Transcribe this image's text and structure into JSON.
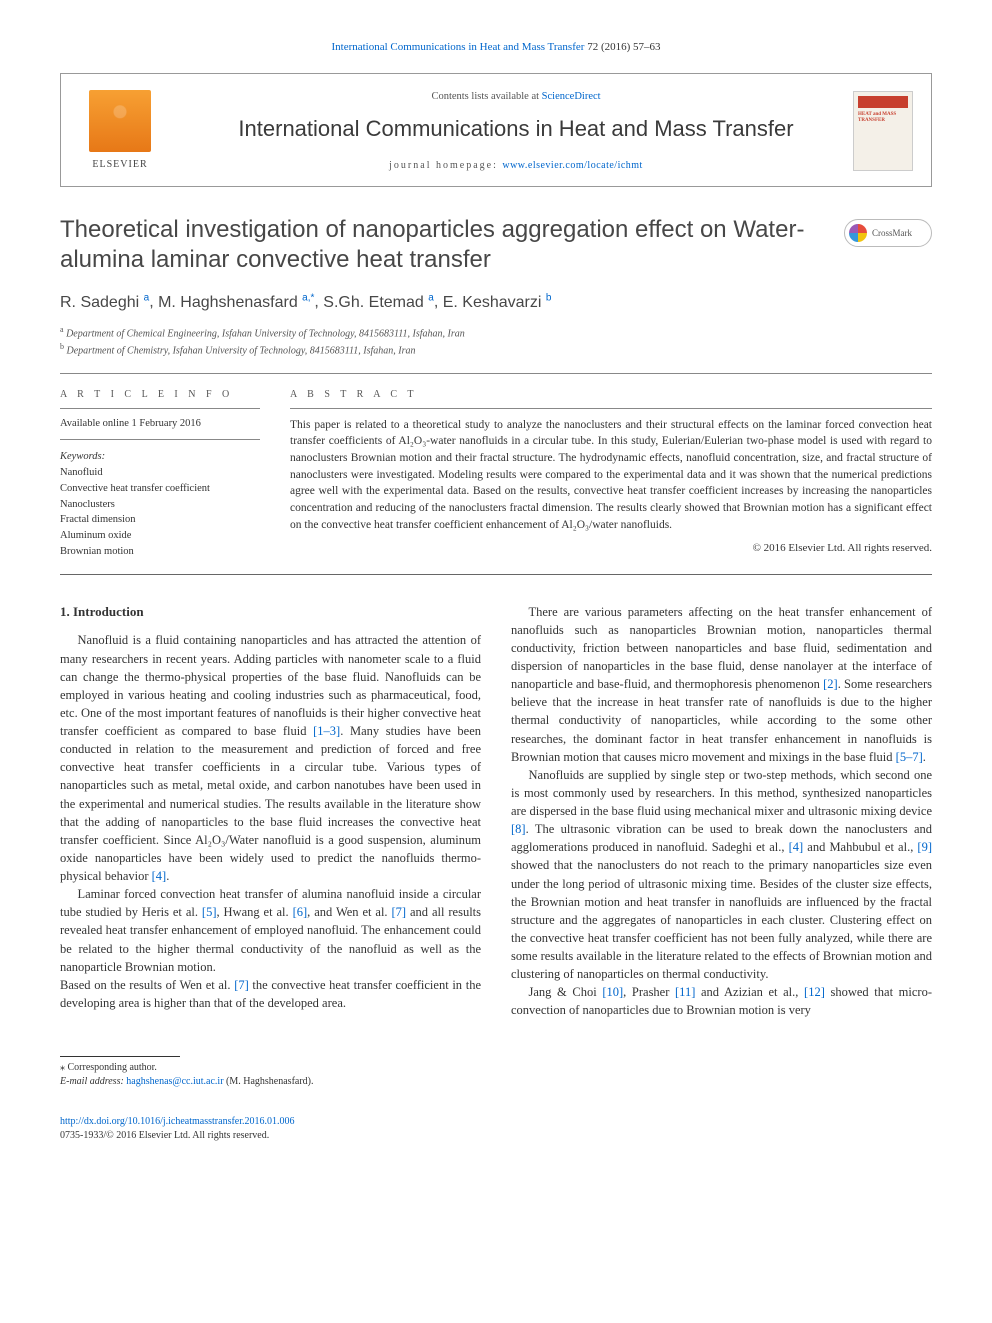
{
  "topLink": {
    "journal": "International Communications in Heat and Mass Transfer",
    "citation": "72 (2016) 57–63"
  },
  "headerBox": {
    "contentsPrefix": "Contents lists available at ",
    "contentsLink": "ScienceDirect",
    "journalName": "International Communications in Heat and Mass Transfer",
    "homepagePrefix": "journal homepage: ",
    "homepageUrl": "www.elsevier.com/locate/ichmt",
    "elsevierLabel": "ELSEVIER",
    "coverText": "HEAT and MASS TRANSFER"
  },
  "crossmark": "CrossMark",
  "title": "Theoretical investigation of nanoparticles aggregation effect on Water-alumina laminar convective heat transfer",
  "authors": [
    {
      "name": "R. Sadeghi",
      "aff": "a"
    },
    {
      "name": "M. Haghshenasfard",
      "aff": "a,*",
      "corr": true
    },
    {
      "name": "S.Gh. Etemad",
      "aff": "a"
    },
    {
      "name": "E. Keshavarzi",
      "aff": "b"
    }
  ],
  "affiliations": [
    {
      "label": "a",
      "text": "Department of Chemical Engineering, Isfahan University of Technology, 8415683111, Isfahan, Iran"
    },
    {
      "label": "b",
      "text": "Department of Chemistry, Isfahan University of Technology, 8415683111, Isfahan, Iran"
    }
  ],
  "infoHead": "A R T I C L E  I N F O",
  "absHead": "A B S T R A C T",
  "availDate": "Available online 1 February 2016",
  "keywordsLabel": "Keywords:",
  "keywords": [
    "Nanofluid",
    "Convective heat transfer coefficient",
    "Nanoclusters",
    "Fractal dimension",
    "Aluminum oxide",
    "Brownian motion"
  ],
  "abstract": "This paper is related to a theoretical study to analyze the nanoclusters and their structural effects on the laminar forced convection heat transfer coefficients of Al₂O₃-water nanofluids in a circular tube. In this study, Eulerian/Eulerian two-phase model is used with regard to nanoclusters Brownian motion and their fractal structure. The hydrodynamic effects, nanofluid concentration, size, and fractal structure of nanoclusters were investigated. Modeling results were compared to the experimental data and it was shown that the numerical predictions agree well with the experimental data. Based on the results, convective heat transfer coefficient increases by increasing the nanoparticles concentration and reducing of the nanoclusters fractal dimension. The results clearly showed that Brownian motion has a significant effect on the convective heat transfer coefficient enhancement of Al₂O₃/water nanofluids.",
  "copyright": "© 2016 Elsevier Ltd. All rights reserved.",
  "sectionHead": "1. Introduction",
  "para1a": "Nanofluid is a fluid containing nanoparticles and has attracted the attention of many researchers in recent years. Adding particles with nanometer scale to a fluid can change the thermo-physical properties of the base fluid. Nanofluids can be employed in various heating and cooling industries such as pharmaceutical, food, etc. One of the most important features of nanofluids is their higher convective heat transfer coefficient as compared to base fluid ",
  "ref1_3": "[1–3]",
  "para1b": ". Many studies have been conducted in relation to the measurement and prediction of forced and free convective heat transfer coefficients in a circular tube. Various types of nanoparticles such as metal, metal oxide, and carbon nanotubes have been used in the experimental and numerical studies. The results available in the literature show that the adding of nanoparticles to the base fluid increases the convective heat transfer coefficient. Since Al₂O₃/Water nanofluid is a good suspension, aluminum oxide nanoparticles have been widely used to predict the nanofluids thermo-physical behavior ",
  "ref4": "[4]",
  "para1c": ".",
  "para2a": "Laminar forced convection heat transfer of alumina nanofluid inside a circular tube studied by Heris et al. ",
  "ref5": "[5]",
  "para2b": ", Hwang et al. ",
  "ref6": "[6]",
  "para2c": ", and Wen et al. ",
  "ref7": "[7]",
  "para2d": " and all results revealed heat transfer enhancement of employed nanofluid. The enhancement could be related to the higher thermal conductivity of the nanofluid as well as the nanoparticle Brownian motion.",
  "para3a": "Based on the results of Wen et al. ",
  "para3b": " the convective heat transfer coefficient in the developing area is higher than that of the developed area.",
  "para4a": "There are various parameters affecting on the heat transfer enhancement of nanofluids such as nanoparticles Brownian motion, nanoparticles thermal conductivity, friction between nanoparticles and base fluid, sedimentation and dispersion of nanoparticles in the base fluid, dense nanolayer at the interface of nanoparticle and base-fluid, and thermophoresis phenomenon ",
  "ref2": "[2]",
  "para4b": ". Some researchers believe that the increase in heat transfer rate of nanofluids is due to the higher thermal conductivity of nanoparticles, while according to the some other researches, the dominant factor in heat transfer enhancement in nanofluids is Brownian motion that causes micro movement and mixings in the base fluid ",
  "ref5_7": "[5–7]",
  "para4c": ".",
  "para5a": "Nanofluids are supplied by single step or two-step methods, which second one is most commonly used by researchers. In this method, synthesized nanoparticles are dispersed in the base fluid using mechanical mixer and ultrasonic mixing device ",
  "ref8": "[8]",
  "para5b": ". The ultrasonic vibration can be used to break down the nanoclusters and agglomerations produced in nanofluid. Sadeghi et al., ",
  "para5c": " and Mahbubul et al., ",
  "ref9": "[9]",
  "para5d": " showed that the nanoclusters do not reach to the primary nanoparticles size even under the long period of ultrasonic mixing time. Besides of the cluster size effects, the Brownian motion and heat transfer in nanofluids are influenced by the fractal structure and the aggregates of nanoparticles in each cluster. Clustering effect on the convective heat transfer coefficient has not been fully analyzed, while there are some results available in the literature related to the effects of Brownian motion and clustering of nanoparticles on thermal conductivity.",
  "para6a": "Jang & Choi ",
  "ref10": "[10]",
  "para6b": ", Prasher ",
  "ref11": "[11]",
  "para6c": " and Azizian et al., ",
  "ref12": "[12]",
  "para6d": " showed that micro-convection of nanoparticles due to Brownian motion is very",
  "footnote": {
    "corr": "⁎ Corresponding author.",
    "emailLabel": "E-mail address:",
    "email": "haghshenas@cc.iut.ac.ir",
    "emailPerson": "(M. Haghshenasfard)."
  },
  "doi": {
    "url": "http://dx.doi.org/10.1016/j.icheatmasstransfer.2016.01.006",
    "issn": "0735-1933/© 2016 Elsevier Ltd. All rights reserved."
  },
  "colors": {
    "link": "#0066cc",
    "text": "#333333",
    "heading": "#474747",
    "rule": "#888888",
    "elsevierOrange": "#e77817"
  },
  "layout": {
    "pageWidth": 992,
    "pageHeight": 1323,
    "bodyColumns": 2,
    "columnGap": 30,
    "infoColWidth": 200
  }
}
